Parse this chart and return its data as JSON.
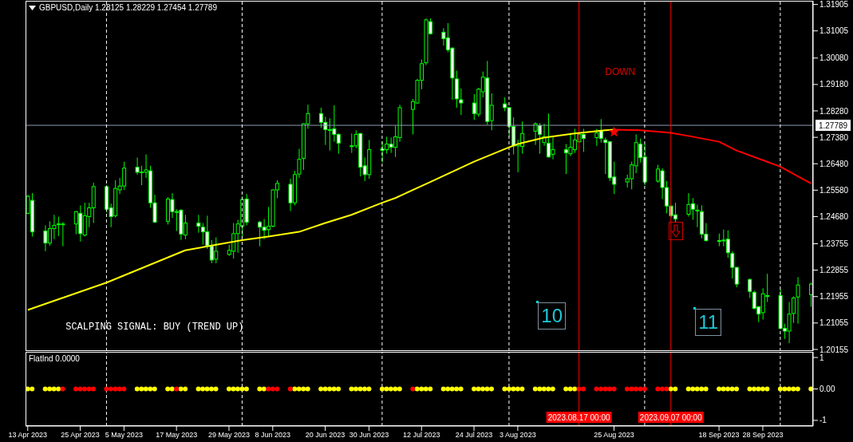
{
  "chart_data": [
    {
      "type": "candlestick",
      "title": "GBPUSD,Daily 1.28125 1.28229 1.27454 1.27789",
      "color": "#00ff00",
      "tick_labels": "y",
      "xlim": [
        "2023-04-12T12:00",
        "2023-10-09T12:00"
      ],
      "x": [
        "2023-04-13",
        "2023-04-14",
        "2023-04-17",
        "2023-04-18",
        "2023-04-19",
        "2023-04-20",
        "2023-04-21",
        "2023-04-24",
        "2023-04-25",
        "2023-04-26",
        "2023-04-27",
        "2023-04-28",
        "2023-05-01",
        "2023-05-02",
        "2023-05-03",
        "2023-05-04",
        "2023-05-05",
        "2023-05-08",
        "2023-05-09",
        "2023-05-10",
        "2023-05-11",
        "2023-05-12",
        "2023-05-15",
        "2023-05-16",
        "2023-05-17",
        "2023-05-18",
        "2023-05-19",
        "2023-05-22",
        "2023-05-23",
        "2023-05-24",
        "2023-05-25",
        "2023-05-26",
        "2023-05-29",
        "2023-05-30",
        "2023-05-31",
        "2023-06-01",
        "2023-06-02",
        "2023-06-05",
        "2023-06-06",
        "2023-06-07",
        "2023-06-08",
        "2023-06-09",
        "2023-06-12",
        "2023-06-13",
        "2023-06-14",
        "2023-06-15",
        "2023-06-16",
        "2023-06-19",
        "2023-06-20",
        "2023-06-21",
        "2023-06-22",
        "2023-06-23",
        "2023-06-26",
        "2023-06-27",
        "2023-06-28",
        "2023-06-29",
        "2023-06-30",
        "2023-07-03",
        "2023-07-04",
        "2023-07-05",
        "2023-07-06",
        "2023-07-07",
        "2023-07-10",
        "2023-07-11",
        "2023-07-12",
        "2023-07-13",
        "2023-07-14",
        "2023-07-17",
        "2023-07-18",
        "2023-07-19",
        "2023-07-20",
        "2023-07-21",
        "2023-07-24",
        "2023-07-25",
        "2023-07-26",
        "2023-07-27",
        "2023-07-28",
        "2023-07-31",
        "2023-08-01",
        "2023-08-02",
        "2023-08-03",
        "2023-08-04",
        "2023-08-07",
        "2023-08-08",
        "2023-08-09",
        "2023-08-10",
        "2023-08-11",
        "2023-08-14",
        "2023-08-15",
        "2023-08-16",
        "2023-08-17",
        "2023-08-18",
        "2023-08-21",
        "2023-08-22",
        "2023-08-23",
        "2023-08-24",
        "2023-08-25",
        "2023-08-28",
        "2023-08-29",
        "2023-08-30",
        "2023-08-31",
        "2023-09-01",
        "2023-09-04",
        "2023-09-05",
        "2023-09-06",
        "2023-09-07",
        "2023-09-08",
        "2023-09-11",
        "2023-09-12",
        "2023-09-13",
        "2023-09-14",
        "2023-09-15",
        "2023-09-18",
        "2023-09-19",
        "2023-09-20",
        "2023-09-21",
        "2023-09-22",
        "2023-09-25",
        "2023-09-26",
        "2023-09-27",
        "2023-09-28",
        "2023-09-29",
        "2023-10-02",
        "2023-10-03",
        "2023-10-04",
        "2023-10-05",
        "2023-10-06",
        "2023-10-09"
      ],
      "ohlc": [
        [
          1.2479,
          1.2542,
          1.2476,
          1.2537
        ],
        [
          1.2523,
          1.2548,
          1.24,
          1.2416
        ],
        [
          1.2419,
          1.2438,
          1.235,
          1.2378
        ],
        [
          1.2378,
          1.2452,
          1.2369,
          1.2427
        ],
        [
          1.2427,
          1.2474,
          1.2391,
          1.2438
        ],
        [
          1.2443,
          1.2468,
          1.2402,
          1.2441
        ],
        [
          1.2441,
          1.2449,
          1.2367,
          1.2443
        ],
        [
          1.2443,
          1.2487,
          1.2408,
          1.2485
        ],
        [
          1.2479,
          1.2506,
          1.2383,
          1.241
        ],
        [
          1.2405,
          1.2515,
          1.24,
          1.2471
        ],
        [
          1.2468,
          1.2515,
          1.2432,
          1.2498
        ],
        [
          1.2498,
          1.2583,
          1.2446,
          1.257
        ],
        [
          1.257,
          1.2575,
          1.2482,
          1.2493
        ],
        [
          1.2498,
          1.2512,
          1.2432,
          1.2468
        ],
        [
          1.2471,
          1.2592,
          1.2465,
          1.2564
        ],
        [
          1.2559,
          1.26,
          1.2545,
          1.2572
        ],
        [
          1.2572,
          1.2655,
          1.2559,
          1.2633
        ],
        [
          1.2636,
          1.2669,
          1.2611,
          1.2619
        ],
        [
          1.2619,
          1.2641,
          1.2575,
          1.262
        ],
        [
          1.2619,
          1.268,
          1.26,
          1.2627
        ],
        [
          1.2624,
          1.2641,
          1.2498,
          1.2515
        ],
        [
          1.2515,
          1.2542,
          1.2446,
          1.2449
        ],
        [
          1.2452,
          1.2534,
          1.2441,
          1.2528
        ],
        [
          1.2526,
          1.2548,
          1.2463,
          1.2485
        ],
        [
          1.2485,
          1.2493,
          1.2419,
          1.2484
        ],
        [
          1.249,
          1.2493,
          1.2388,
          1.2408
        ],
        [
          1.2405,
          1.2474,
          1.2391,
          1.2446
        ],
        [
          1.2446,
          1.2474,
          1.2413,
          1.2435
        ],
        [
          1.2432,
          1.2446,
          1.2372,
          1.2416
        ],
        [
          1.2416,
          1.2471,
          1.2358,
          1.2369
        ],
        [
          1.2367,
          1.2388,
          1.2309,
          1.232
        ],
        [
          1.2323,
          1.2397,
          1.2309,
          1.235
        ],
        [
          1.2339,
          1.2372,
          1.2334,
          1.2353
        ],
        [
          1.235,
          1.2446,
          1.2325,
          1.241
        ],
        [
          1.241,
          1.2457,
          1.2345,
          1.2443
        ],
        [
          1.2435,
          1.2537,
          1.24,
          1.2526
        ],
        [
          1.2528,
          1.2545,
          1.2438,
          1.2449
        ],
        [
          1.2449,
          1.2454,
          1.2367,
          1.2432
        ],
        [
          1.2432,
          1.246,
          1.2391,
          1.2421
        ],
        [
          1.2424,
          1.2501,
          1.24,
          1.2435
        ],
        [
          1.2435,
          1.2561,
          1.2432,
          1.2559
        ],
        [
          1.2559,
          1.2592,
          1.2531,
          1.2581
        ],
        [
          1.2578,
          1.2597,
          1.2487,
          1.2515
        ],
        [
          1.2515,
          1.2624,
          1.2506,
          1.2611
        ],
        [
          1.2613,
          1.2699,
          1.26,
          1.2663
        ],
        [
          1.2666,
          1.2786,
          1.2627,
          1.2784
        ],
        [
          1.2784,
          1.2849,
          1.2767,
          1.2819
        ],
        [
          1.2819,
          1.2839,
          1.277,
          1.2789
        ],
        [
          1.2789,
          1.2808,
          1.2712,
          1.2764
        ],
        [
          1.2764,
          1.2803,
          1.2693,
          1.2763
        ],
        [
          1.2767,
          1.2847,
          1.2723,
          1.2748
        ],
        [
          1.2748,
          1.2751,
          1.2682,
          1.2718
        ],
        [
          1.2709,
          1.2751,
          1.2685,
          1.2708
        ],
        [
          1.2709,
          1.2762,
          1.2701,
          1.2748
        ],
        [
          1.2751,
          1.2753,
          1.2605,
          1.2636
        ],
        [
          1.2641,
          1.2669,
          1.2589,
          1.2611
        ],
        [
          1.2611,
          1.2729,
          1.2597,
          1.2696
        ],
        [
          1.2699,
          1.2723,
          1.2652,
          1.2693
        ],
        [
          1.2696,
          1.274,
          1.2682,
          1.2715
        ],
        [
          1.2715,
          1.2737,
          1.2685,
          1.2704
        ],
        [
          1.2704,
          1.2778,
          1.2671,
          1.274
        ],
        [
          1.2737,
          1.2849,
          1.2723,
          1.2839
        ],
        [
          1.2833,
          1.2869,
          1.2748,
          1.286
        ],
        [
          1.2855,
          1.2937,
          1.2852,
          1.2932
        ],
        [
          1.2932,
          1.3003,
          1.2902,
          1.2989
        ],
        [
          1.2992,
          1.3143,
          1.2984,
          1.3138
        ],
        [
          1.3132,
          1.3143,
          1.3088,
          1.3091
        ],
        [
          1.3096,
          1.311,
          1.305,
          1.3074
        ],
        [
          1.3077,
          1.3127,
          1.3028,
          1.3036
        ],
        [
          1.3042,
          1.3044,
          1.2866,
          1.294
        ],
        [
          1.2937,
          1.2965,
          1.2839,
          1.2869
        ],
        [
          1.2866,
          1.2904,
          1.2814,
          1.2855
        ],
        [
          1.2855,
          1.2885,
          1.2797,
          1.2819
        ],
        [
          1.2817,
          1.2907,
          1.2808,
          1.2902
        ],
        [
          1.2893,
          1.2962,
          1.2874,
          1.2943
        ],
        [
          1.294,
          1.2998,
          1.2781,
          1.2792
        ],
        [
          1.2795,
          1.2888,
          1.2762,
          1.2847
        ],
        [
          1.2852,
          1.2874,
          1.2827,
          1.2839
        ],
        [
          1.2839,
          1.2841,
          1.274,
          1.2775
        ],
        [
          1.2775,
          1.2806,
          1.268,
          1.2709
        ],
        [
          1.2709,
          1.2729,
          1.2619,
          1.2715
        ],
        [
          1.2707,
          1.2792,
          1.2682,
          1.2751
        ],
        [
          1.2759,
          1.2789,
          1.2712,
          1.2784
        ],
        [
          1.2778,
          1.2786,
          1.2682,
          1.2748
        ],
        [
          1.272,
          1.2784,
          1.2709,
          1.274
        ],
        [
          1.2718,
          1.2819,
          1.2669,
          1.2671
        ],
        [
          1.268,
          1.2742,
          1.2663,
          1.2696
        ],
        [
          1.2696,
          1.2715,
          1.2613,
          1.2685
        ],
        [
          1.2682,
          1.2753,
          1.2674,
          1.2704
        ],
        [
          1.2696,
          1.2767,
          1.2685,
          1.2729
        ],
        [
          1.2723,
          1.2753,
          1.272,
          1.2748
        ],
        [
          1.2748,
          1.2767,
          1.2688,
          1.2734
        ],
        [
          1.2737,
          1.2767,
          1.2709,
          1.2753
        ],
        [
          1.2759,
          1.28,
          1.272,
          1.2734
        ],
        [
          1.2729,
          1.2737,
          1.2613,
          1.272
        ],
        [
          1.2723,
          1.2725,
          1.2589,
          1.26
        ],
        [
          1.2603,
          1.2655,
          1.2545,
          1.2578
        ],
        [
          1.2586,
          1.2611,
          1.2567,
          1.2597
        ],
        [
          1.2597,
          1.2655,
          1.2561,
          1.2644
        ],
        [
          1.2641,
          1.2748,
          1.2616,
          1.272
        ],
        [
          1.2715,
          1.2734,
          1.2652,
          1.2669
        ],
        [
          1.2671,
          1.2715,
          1.2575,
          1.2586
        ],
        [
          1.2589,
          1.2644,
          1.2583,
          1.263
        ],
        [
          1.2624,
          1.2633,
          1.2528,
          1.2567
        ],
        [
          1.2567,
          1.2589,
          1.2479,
          1.2504
        ],
        [
          1.2504,
          1.2506,
          1.2465,
          1.2471
        ],
        [
          1.2474,
          1.2515,
          1.2449,
          1.246
        ],
        [
          1.2476,
          1.2548,
          1.2468,
          1.2509
        ],
        [
          1.2512,
          1.2531,
          1.2457,
          1.2493
        ],
        [
          1.249,
          1.2509,
          1.2432,
          1.2489
        ],
        [
          1.2485,
          1.2506,
          1.2394,
          1.2408
        ],
        [
          1.2408,
          1.2446,
          1.2383,
          1.2386
        ],
        [
          1.2386,
          1.241,
          1.2367,
          1.2385
        ],
        [
          1.2388,
          1.2424,
          1.2367,
          1.2387
        ],
        [
          1.2391,
          1.2421,
          1.2328,
          1.2345
        ],
        [
          1.2342,
          1.235,
          1.2257,
          1.2295
        ],
        [
          1.2295,
          1.2296,
          1.2227,
          1.2238
        ],
        [
          1.2254,
          1.2257,
          1.2191,
          1.2213
        ],
        [
          1.221,
          1.2216,
          1.2152,
          1.2155
        ],
        [
          1.2161,
          1.2163,
          1.2109,
          1.2136
        ],
        [
          1.2141,
          1.2224,
          1.2117,
          1.2205
        ],
        [
          1.2199,
          1.2273,
          1.2177,
          1.2198
        ],
        [
          1.2199,
          1.2221,
          1.2084,
          1.2087
        ],
        [
          1.2087,
          1.2103,
          1.2051,
          1.2078
        ],
        [
          1.2078,
          1.2177,
          1.2037,
          1.2136
        ],
        [
          1.2138,
          1.2196,
          1.2106,
          1.2191
        ],
        [
          1.2194,
          1.2262,
          1.2103,
          1.2235
        ],
        [
          1.2202,
          1.2243,
          1.2161,
          1.2238
        ]
      ],
      "series": [
        {
          "type": "line",
          "color": "#ffff00",
          "x": [
            "2023-04-13",
            "2023-05-01",
            "2023-05-19",
            "2023-06-01",
            "2023-06-07",
            "2023-06-14",
            "2023-06-20",
            "2023-06-26",
            "2023-07-03",
            "2023-07-06",
            "2023-07-14",
            "2023-07-24",
            "2023-08-01",
            "2023-08-03",
            "2023-08-09",
            "2023-08-16",
            "2023-08-23",
            "2023-08-25"
          ],
          "values": [
            1.215,
            1.2243,
            1.2353,
            1.2388,
            1.24,
            1.2416,
            1.2446,
            1.2474,
            1.2515,
            1.2531,
            1.2586,
            1.2655,
            1.2704,
            1.2715,
            1.2737,
            1.2751,
            1.2762,
            1.2764
          ]
        },
        {
          "type": "line",
          "color": "#ff0000",
          "x": [
            "2023-08-25",
            "2023-08-31",
            "2023-09-05",
            "2023-09-07",
            "2023-09-12",
            "2023-09-18",
            "2023-09-22",
            "2023-09-28",
            "2023-10-02",
            "2023-10-09"
          ],
          "values": [
            1.2764,
            1.2762,
            1.2756,
            1.2753,
            1.274,
            1.2723,
            1.2693,
            1.266,
            1.2638,
            1.2581
          ]
        },
        {
          "type": "scatter",
          "marker": "star",
          "color": "#ff0000",
          "x": [
            "2023-08-25"
          ],
          "values": [
            1.2756
          ]
        }
      ],
      "ylim": [
        1.201,
        1.3203
      ],
      "yticks": [
        1.31905,
        1.31005,
        {
          "value": 1.3008,
          "label": "1.30080"
        },
        {
          "value": 1.2918,
          "label": "1.29180"
        },
        {
          "value": 1.2828,
          "label": "1.28280"
        },
        {
          "value": 1.2738,
          "label": "1.27380"
        },
        {
          "value": 1.2648,
          "label": "1.26480"
        },
        {
          "value": 1.2558,
          "label": "1.25580"
        },
        {
          "value": 1.2468,
          "label": "1.24680"
        },
        1.23755,
        1.22855,
        1.21955,
        1.21055,
        1.20155
      ],
      "ref_lines": [
        {
          "axis": "y",
          "value": 1.27789,
          "label": "1.27789",
          "color": "#8a9bb0"
        },
        {
          "axis": "x",
          "value": "2023-05-01",
          "color": "#ffffff",
          "line_style": "dashed"
        },
        {
          "axis": "x",
          "value": "2023-06-01",
          "color": "#ffffff",
          "line_style": "dashed"
        },
        {
          "axis": "x",
          "value": "2023-07-03",
          "color": "#ffffff",
          "line_style": "dashed"
        },
        {
          "axis": "x",
          "value": "2023-08-01",
          "color": "#ffffff",
          "line_style": "dashed"
        },
        {
          "axis": "x",
          "value": "2023-09-01",
          "color": "#ffffff",
          "line_style": "dashed"
        },
        {
          "axis": "x",
          "value": "2023-10-02",
          "color": "#ffffff",
          "line_style": "dashed"
        },
        {
          "axis": "x",
          "value": "2023-08-17",
          "color": "#ff0000"
        },
        {
          "axis": "x",
          "value": "2023-09-07",
          "color": "#ff0000"
        }
      ],
      "annotations": [
        "DOWN",
        "SCALPING SIGNAL: BUY (TREND UP)",
        "10",
        "11"
      ]
    },
    {
      "type": "scatter",
      "title": "FlatInd 0.0000",
      "xlim": [
        "2023-04-12T12:00",
        "2023-10-09T12:00"
      ],
      "x": [
        "2023-04-13",
        "2023-04-14",
        "2023-04-17",
        "2023-04-18",
        "2023-04-19",
        "2023-04-20",
        "2023-04-21",
        "2023-04-24",
        "2023-04-25",
        "2023-04-26",
        "2023-04-27",
        "2023-04-28",
        "2023-05-01",
        "2023-05-02",
        "2023-05-03",
        "2023-05-04",
        "2023-05-05",
        "2023-05-08",
        "2023-05-09",
        "2023-05-10",
        "2023-05-11",
        "2023-05-12",
        "2023-05-15",
        "2023-05-16",
        "2023-05-17",
        "2023-05-18",
        "2023-05-19",
        "2023-05-22",
        "2023-05-23",
        "2023-05-24",
        "2023-05-25",
        "2023-05-26",
        "2023-05-29",
        "2023-05-30",
        "2023-05-31",
        "2023-06-01",
        "2023-06-02",
        "2023-06-05",
        "2023-06-06",
        "2023-06-07",
        "2023-06-08",
        "2023-06-09",
        "2023-06-12",
        "2023-06-13",
        "2023-06-14",
        "2023-06-15",
        "2023-06-16",
        "2023-06-19",
        "2023-06-20",
        "2023-06-21",
        "2023-06-22",
        "2023-06-23",
        "2023-06-26",
        "2023-06-27",
        "2023-06-28",
        "2023-06-29",
        "2023-06-30",
        "2023-07-03",
        "2023-07-04",
        "2023-07-05",
        "2023-07-06",
        "2023-07-07",
        "2023-07-10",
        "2023-07-11",
        "2023-07-12",
        "2023-07-13",
        "2023-07-14",
        "2023-07-17",
        "2023-07-18",
        "2023-07-19",
        "2023-07-20",
        "2023-07-21",
        "2023-07-24",
        "2023-07-25",
        "2023-07-26",
        "2023-07-27",
        "2023-07-28",
        "2023-07-31",
        "2023-08-01",
        "2023-08-02",
        "2023-08-03",
        "2023-08-04",
        "2023-08-07",
        "2023-08-08",
        "2023-08-09",
        "2023-08-10",
        "2023-08-11",
        "2023-08-14",
        "2023-08-15",
        "2023-08-16",
        "2023-08-17",
        "2023-08-18",
        "2023-08-21",
        "2023-08-22",
        "2023-08-23",
        "2023-08-24",
        "2023-08-25",
        "2023-08-28",
        "2023-08-29",
        "2023-08-30",
        "2023-08-31",
        "2023-09-01",
        "2023-09-04",
        "2023-09-05",
        "2023-09-06",
        "2023-09-07",
        "2023-09-08",
        "2023-09-11",
        "2023-09-12",
        "2023-09-13",
        "2023-09-14",
        "2023-09-15",
        "2023-09-18",
        "2023-09-19",
        "2023-09-20",
        "2023-09-21",
        "2023-09-22",
        "2023-09-25",
        "2023-09-26",
        "2023-09-27",
        "2023-09-28",
        "2023-09-29",
        "2023-10-02",
        "2023-10-03",
        "2023-10-04",
        "2023-10-05",
        "2023-10-06",
        "2023-10-09"
      ],
      "xticks": [
        {
          "value": "2023-04-13",
          "label": "13 Apr 2023"
        },
        {
          "value": "2023-04-25",
          "label": "25 Apr 2023"
        },
        {
          "value": "2023-05-05",
          "label": "5 May 2023"
        },
        {
          "value": "2023-05-17",
          "label": "17 May 2023"
        },
        {
          "value": "2023-05-29",
          "label": "29 May 2023"
        },
        {
          "value": "2023-06-08",
          "label": "8 Jun 2023"
        },
        {
          "value": "2023-06-20",
          "label": "20 Jun 2023"
        },
        {
          "value": "2023-06-30",
          "label": "30 Jun 2023"
        },
        {
          "value": "2023-07-12",
          "label": "12 Jul 2023"
        },
        {
          "value": "2023-07-24",
          "label": "24 Jul 2023"
        },
        {
          "value": "2023-08-03",
          "label": "3 Aug 2023"
        },
        {
          "value": "2023-08-25",
          "label": "25 Aug 2023"
        },
        {
          "value": "2023-09-18",
          "label": "18 Sep 2023"
        },
        {
          "value": "2023-09-28",
          "label": "28 Sep 2023"
        }
      ],
      "series": [
        {
          "marker": "circle",
          "color": "#ffff00",
          "values": [
            0,
            0,
            0,
            0,
            0,
            0,
            null,
            null,
            null,
            null,
            null,
            null,
            null,
            null,
            null,
            null,
            null,
            0,
            0,
            0,
            0,
            0,
            0,
            0,
            null,
            0,
            0,
            0,
            0,
            0,
            0,
            0,
            0,
            0,
            0,
            0,
            0,
            0,
            0,
            null,
            null,
            null,
            null,
            0,
            0,
            0,
            0,
            0,
            0,
            0,
            0,
            0,
            0,
            0,
            0,
            0,
            0,
            0,
            0,
            0,
            0,
            0,
            null,
            0,
            0,
            0,
            0,
            0,
            0,
            0,
            0,
            0,
            0,
            0,
            0,
            0,
            0,
            0,
            0,
            0,
            0,
            0,
            0,
            0,
            0,
            0,
            0,
            0,
            0,
            0,
            null,
            null,
            null,
            null,
            null,
            null,
            null,
            null,
            null,
            null,
            null,
            null,
            null,
            null,
            null,
            0,
            0,
            0,
            0,
            0,
            0,
            0,
            0,
            0,
            0,
            0,
            0,
            0,
            0,
            0,
            0,
            0,
            0,
            0,
            0,
            0,
            0,
            0
          ]
        },
        {
          "marker": "circle",
          "color": "#ff0000",
          "values": [
            null,
            null,
            null,
            null,
            null,
            null,
            0,
            0,
            0,
            0,
            0,
            0,
            0,
            0,
            0,
            0,
            0,
            null,
            null,
            null,
            null,
            null,
            null,
            null,
            0,
            null,
            null,
            null,
            null,
            null,
            null,
            null,
            null,
            null,
            null,
            null,
            null,
            null,
            null,
            0,
            0,
            0,
            0,
            null,
            null,
            null,
            null,
            null,
            null,
            null,
            null,
            null,
            null,
            null,
            null,
            null,
            null,
            null,
            null,
            null,
            null,
            null,
            0,
            null,
            null,
            null,
            null,
            null,
            null,
            null,
            null,
            null,
            null,
            null,
            null,
            null,
            null,
            null,
            null,
            null,
            null,
            null,
            null,
            null,
            null,
            null,
            null,
            null,
            null,
            null,
            0,
            0,
            0,
            0,
            0,
            0,
            0,
            0,
            0,
            0,
            0,
            0,
            0,
            0,
            0,
            null,
            null,
            null,
            null,
            null,
            null,
            null,
            null,
            null,
            null,
            null,
            null,
            null,
            null,
            null,
            null,
            null,
            null,
            null,
            null,
            null,
            null,
            null
          ]
        }
      ],
      "ylim": [
        -1.18,
        1.18
      ],
      "yticks": [
        1,
        {
          "value": 0,
          "label": "0.00"
        },
        -1
      ],
      "ref_lines": [
        {
          "axis": "x",
          "value": "2023-05-01",
          "color": "#ffffff",
          "line_style": "dashed"
        },
        {
          "axis": "x",
          "value": "2023-06-01",
          "color": "#ffffff",
          "line_style": "dashed"
        },
        {
          "axis": "x",
          "value": "2023-07-03",
          "color": "#ffffff",
          "line_style": "dashed"
        },
        {
          "axis": "x",
          "value": "2023-08-01",
          "color": "#ffffff",
          "line_style": "dashed"
        },
        {
          "axis": "x",
          "value": "2023-09-01",
          "color": "#ffffff",
          "line_style": "dashed"
        },
        {
          "axis": "x",
          "value": "2023-10-02",
          "color": "#ffffff",
          "line_style": "dashed"
        },
        {
          "axis": "x",
          "value": "2023-08-17",
          "label": "2023.08.17 00:00",
          "color": "#ff0000"
        },
        {
          "axis": "x",
          "value": "2023-09-07",
          "label": "2023.09.07 00:00",
          "color": "#ff0000"
        }
      ]
    }
  ]
}
